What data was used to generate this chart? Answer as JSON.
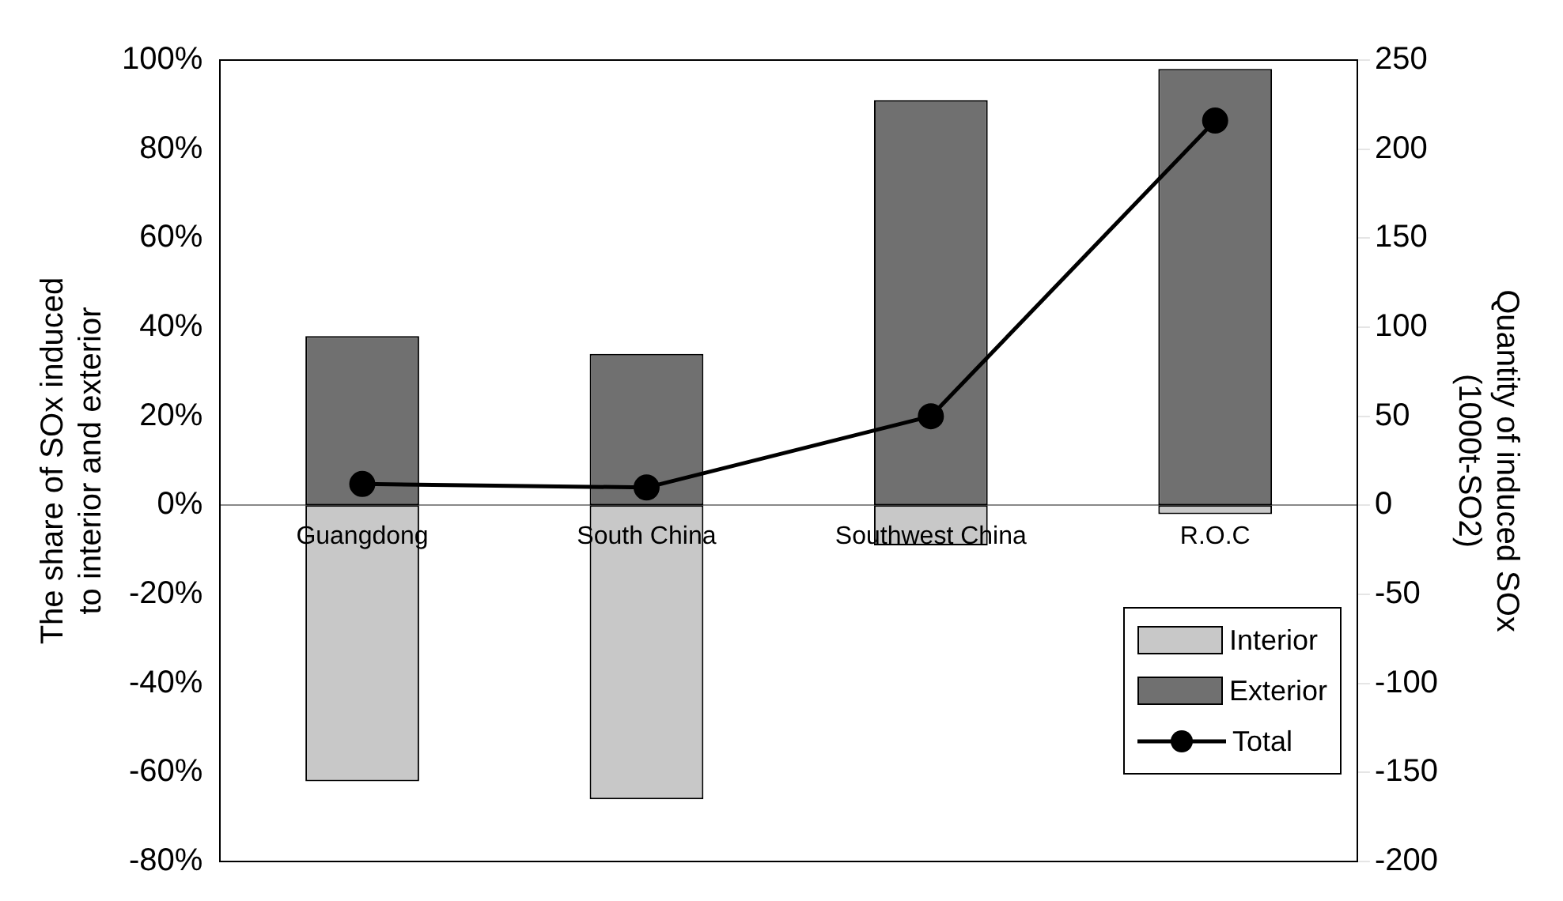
{
  "chart_data": {
    "type": "bar",
    "stacked": true,
    "ylabel": "The share of SOx induced\nto interior and exterior",
    "y2label": "Quantity of induced SOx\n(1000t-SO2)",
    "categories": [
      "Guangdong",
      "South China",
      "Southwest China",
      "R.O.C"
    ],
    "series": [
      {
        "name": "Interior",
        "color": "#c8c8c8",
        "values": [
          -62,
          -66,
          -9,
          -2
        ]
      },
      {
        "name": "Exterior",
        "color": "#707070",
        "values": [
          38,
          34,
          91,
          98
        ]
      },
      {
        "name": "Total",
        "type": "line",
        "axis": "y2",
        "color": "#000000",
        "marker": "circle",
        "line_style": "solid",
        "values": [
          12,
          10,
          50,
          216
        ]
      }
    ],
    "ylim": [
      -80,
      100
    ],
    "yticks": [
      {
        "value": -80,
        "label": "-80%"
      },
      {
        "value": -60,
        "label": "-60%"
      },
      {
        "value": -40,
        "label": "-40%"
      },
      {
        "value": -20,
        "label": "-20%"
      },
      {
        "value": 0,
        "label": "0%"
      },
      {
        "value": 20,
        "label": "20%"
      },
      {
        "value": 40,
        "label": "40%"
      },
      {
        "value": 60,
        "label": "60%"
      },
      {
        "value": 80,
        "label": "80%"
      },
      {
        "value": 100,
        "label": "100%"
      }
    ],
    "y2lim": [
      -200,
      250
    ],
    "y2ticks": [
      -200,
      -150,
      -100,
      -50,
      0,
      50,
      100,
      150,
      200,
      250
    ],
    "grid": false,
    "legend": "bottom right"
  }
}
